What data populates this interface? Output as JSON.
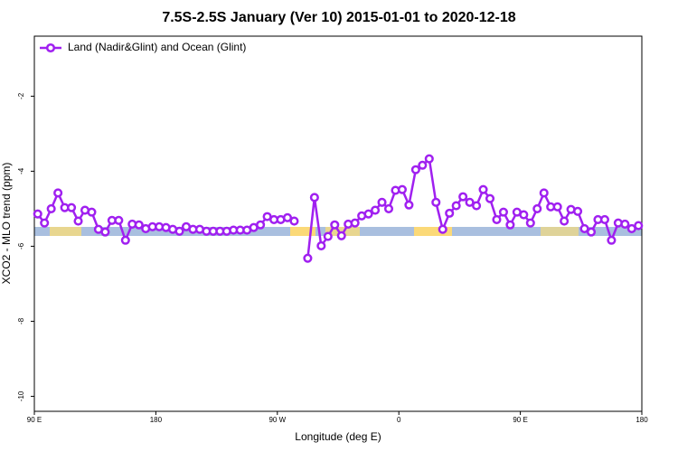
{
  "chart_data": {
    "type": "line",
    "title": "7.5S-2.5S January (Ver 10)   2015-01-01 to 2020-12-18",
    "xlabel": "Longitude (deg E)",
    "ylabel": "XCO2 - MLO trend (ppm)",
    "x": [
      92.5,
      97.5,
      102.5,
      107.5,
      112.5,
      117.5,
      122.5,
      127.5,
      132.5,
      137.5,
      142.5,
      147.5,
      152.5,
      157.5,
      162.5,
      167.5,
      172.5,
      177.5,
      182.5,
      187.5,
      192.5,
      197.5,
      202.5,
      207.5,
      212.5,
      217.5,
      222.5,
      227.5,
      232.5,
      237.5,
      242.5,
      247.5,
      252.5,
      257.5,
      262.5,
      267.5,
      272.5,
      277.5,
      282.5,
      287.5,
      292.5,
      297.5,
      302.5,
      307.5,
      312.5,
      317.5,
      322.5,
      327.5,
      332.5,
      337.5,
      342.5,
      347.5,
      352.5,
      357.5,
      362.5,
      367.5,
      372.5,
      377.5,
      382.5,
      387.5,
      392.5,
      397.5,
      402.5,
      407.5,
      412.5,
      417.5,
      422.5,
      427.5,
      432.5,
      437.5,
      442.5,
      447.5,
      452.5,
      457.5,
      462.5,
      467.5,
      472.5,
      477.5,
      482.5,
      487.5,
      492.5,
      497.5,
      502.5,
      507.5,
      512.5,
      517.5,
      522.5,
      527.5,
      532.5,
      537.5
    ],
    "series": [
      {
        "name": "Land (Nadir&Glint) and Ocean (Glint)",
        "color": "#a020f0",
        "values": [
          -5.14,
          -5.38,
          -5.0,
          -4.58,
          -4.97,
          -4.97,
          -5.33,
          -5.04,
          -5.09,
          -5.55,
          -5.62,
          -5.31,
          -5.31,
          -5.84,
          -5.41,
          -5.43,
          -5.53,
          -5.48,
          -5.48,
          -5.5,
          -5.55,
          -5.6,
          -5.48,
          -5.55,
          -5.55,
          -5.6,
          -5.6,
          -5.6,
          -5.6,
          -5.57,
          -5.57,
          -5.57,
          -5.5,
          -5.43,
          -5.21,
          -5.29,
          -5.29,
          -5.24,
          -5.33,
          null,
          -6.32,
          -4.7,
          -5.99,
          -5.74,
          -5.43,
          -5.72,
          -5.41,
          -5.38,
          -5.19,
          -5.14,
          -5.04,
          -4.83,
          -5.0,
          -4.51,
          -4.49,
          -4.9,
          -3.96,
          -3.84,
          -3.67,
          -4.83,
          -5.55,
          -5.12,
          -4.92,
          -4.68,
          -4.83,
          -4.92,
          -4.49,
          -4.73,
          -5.29,
          -5.09,
          -5.43,
          -5.09,
          -5.16,
          -5.38,
          -5.0,
          -4.58,
          -4.95,
          -4.95,
          -5.33,
          -5.02,
          -5.07,
          -5.53,
          -5.62,
          -5.29,
          -5.29,
          -5.84,
          -5.38,
          -5.41,
          -5.53,
          -5.45
        ]
      }
    ],
    "xlim": [
      90,
      540
    ],
    "xticks": [
      {
        "value": 90,
        "label": "90 E"
      },
      180,
      {
        "value": 270,
        "label": "90 W"
      },
      {
        "value": 360,
        "label": "0"
      },
      {
        "value": 450,
        "label": "90 E"
      },
      {
        "value": 540,
        "label": "180"
      }
    ],
    "ylim": [
      -10.4,
      -0.4
    ],
    "yticks": [
      -2,
      -4,
      -6,
      -8,
      -10
    ],
    "legend": "top-left"
  }
}
